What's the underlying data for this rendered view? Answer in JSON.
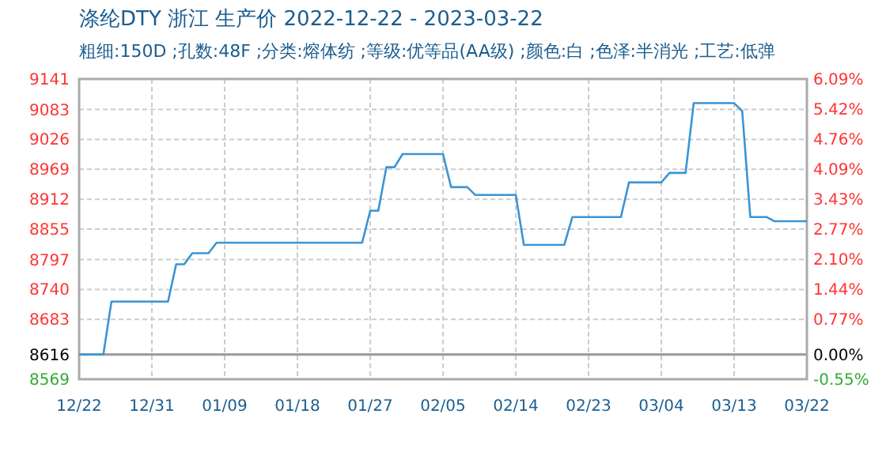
{
  "chart_data": {
    "type": "line",
    "title": "涤纶DTY 浙江 生产价 2022-12-22 - 2023-03-22",
    "subtitle": "粗细:150D ;孔数:48F ;分类:熔体纺 ;等级:优等品(AA级) ;颜色:白 ;色泽:半消光 ;工艺:低弹",
    "x": [
      "2022-12-22",
      "2022-12-25",
      "2022-12-26",
      "2023-01-02",
      "2023-01-03",
      "2023-01-04",
      "2023-01-05",
      "2023-01-07",
      "2023-01-08",
      "2023-01-26",
      "2023-01-27",
      "2023-01-28",
      "2023-01-29",
      "2023-01-30",
      "2023-01-31",
      "2023-02-05",
      "2023-02-06",
      "2023-02-08",
      "2023-02-09",
      "2023-02-14",
      "2023-02-15",
      "2023-02-20",
      "2023-02-21",
      "2023-02-27",
      "2023-02-28",
      "2023-03-04",
      "2023-03-05",
      "2023-03-07",
      "2023-03-08",
      "2023-03-13",
      "2023-03-14",
      "2023-03-15",
      "2023-03-17",
      "2023-03-18",
      "2023-03-22"
    ],
    "series": [
      {
        "color": "#3a95d4",
        "values": [
          8616,
          8616,
          8717,
          8717,
          8788,
          8788,
          8809,
          8809,
          8829,
          8829,
          8890,
          8890,
          8973,
          8973,
          8998,
          8998,
          8935,
          8935,
          8920,
          8920,
          8825,
          8825,
          8878,
          8878,
          8944,
          8944,
          8962,
          8962,
          9095,
          9095,
          9080,
          8878,
          8878,
          8870,
          8870
        ]
      }
    ],
    "xlim": [
      "2022-12-22",
      "2023-03-22"
    ],
    "xticks": [
      {
        "value": "2022-12-22",
        "label": "12/22"
      },
      {
        "value": "2022-12-31",
        "label": "12/31"
      },
      {
        "value": "2023-01-09",
        "label": "01/09"
      },
      {
        "value": "2023-01-18",
        "label": "01/18"
      },
      {
        "value": "2023-01-27",
        "label": "01/27"
      },
      {
        "value": "2023-02-05",
        "label": "02/05"
      },
      {
        "value": "2023-02-14",
        "label": "02/14"
      },
      {
        "value": "2023-02-23",
        "label": "02/23"
      },
      {
        "value": "2023-03-04",
        "label": "03/04"
      },
      {
        "value": "2023-03-13",
        "label": "03/13"
      },
      {
        "value": "2023-03-22",
        "label": "03/22"
      }
    ],
    "ylim": [
      8569,
      9141
    ],
    "yticks": [
      8569,
      8616,
      8683,
      8740,
      8797,
      8855,
      8912,
      8969,
      9026,
      9083,
      9141
    ],
    "y2lim": [
      -0.55,
      6.09
    ],
    "y2ticks": [
      {
        "value": -0.55,
        "label": "-0.55%"
      },
      {
        "value": 0,
        "label": "0.00%"
      },
      {
        "value": 0.77,
        "label": "0.77%"
      },
      {
        "value": 1.44,
        "label": "1.44%"
      },
      {
        "value": 2.1,
        "label": "2.10%"
      },
      {
        "value": 2.77,
        "label": "2.77%"
      },
      {
        "value": 3.43,
        "label": "3.43%"
      },
      {
        "value": 4.09,
        "label": "4.09%"
      },
      {
        "value": 4.76,
        "label": "4.76%"
      },
      {
        "value": 5.42,
        "label": "5.42%"
      },
      {
        "value": 6.09,
        "label": "6.09%"
      }
    ],
    "ref_lines": [
      {
        "axis": "y",
        "value": 8616,
        "color": "#999999"
      }
    ],
    "grid": true,
    "marker": "none",
    "line_style": "solid"
  }
}
